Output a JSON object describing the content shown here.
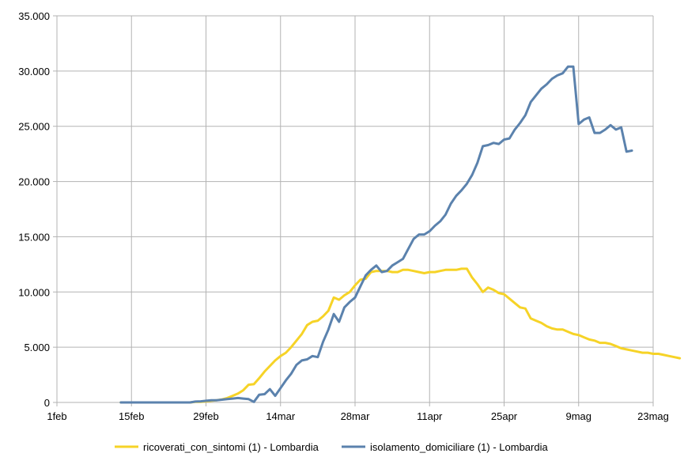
{
  "chart_data": {
    "type": "line",
    "title": "",
    "xlabel": "",
    "ylabel": "",
    "x_tick_labels": [
      "1feb",
      "15feb",
      "29feb",
      "14mar",
      "28mar",
      "11apr",
      "25apr",
      "9mag",
      "23mag"
    ],
    "y_tick_labels": [
      "0",
      "5.000",
      "10.000",
      "15.000",
      "20.000",
      "25.000",
      "30.000",
      "35.000"
    ],
    "y_ticks": [
      0,
      5000,
      10000,
      15000,
      20000,
      25000,
      30000,
      35000
    ],
    "ylim": [
      0,
      35000
    ],
    "x_axis": "days since 1feb",
    "xlim": [
      0,
      112
    ],
    "grid": true,
    "legend_position": "bottom",
    "series": [
      {
        "name": "ricoverati_con_sintomi (1) - Lombardia",
        "color": "#f6d327",
        "x": [
          12,
          13,
          14,
          15,
          16,
          17,
          18,
          19,
          20,
          21,
          22,
          23,
          24,
          25,
          26,
          27,
          28,
          29,
          30,
          31,
          32,
          33,
          34,
          35,
          36,
          37,
          38,
          39,
          40,
          41,
          42,
          43,
          44,
          45,
          46,
          47,
          48,
          49,
          50,
          51,
          52,
          53,
          54,
          55,
          56,
          57,
          58,
          59,
          60,
          61,
          62,
          63,
          64,
          65,
          66,
          67,
          68,
          69,
          70,
          71,
          72,
          73,
          74,
          75,
          76,
          77,
          78,
          79,
          80,
          81,
          82,
          83,
          84,
          85,
          86,
          87,
          88,
          89,
          90,
          91,
          92,
          93,
          94,
          95,
          96,
          97,
          98,
          99,
          100,
          101,
          102,
          103,
          104,
          105,
          106,
          107,
          108,
          109,
          110,
          111,
          112,
          113,
          114,
          115,
          116,
          117
        ],
        "values": [
          0,
          0,
          0,
          0,
          0,
          0,
          0,
          0,
          0,
          0,
          0,
          0,
          0,
          0,
          50,
          60,
          100,
          150,
          200,
          270,
          400,
          600,
          800,
          1100,
          1600,
          1650,
          2200,
          2800,
          3300,
          3800,
          4200,
          4500,
          5000,
          5600,
          6200,
          7000,
          7300,
          7400,
          7800,
          8300,
          9500,
          9300,
          9700,
          10000,
          10600,
          11100,
          11200,
          11800,
          11900,
          11900,
          11900,
          11800,
          11800,
          12000,
          12000,
          11900,
          11800,
          11700,
          11800,
          11800,
          11900,
          12000,
          12000,
          12000,
          12100,
          12100,
          11300,
          10700,
          10000,
          10400,
          10200,
          9900,
          9800,
          9400,
          9000,
          8600,
          8500,
          7600,
          7400,
          7200,
          6900,
          6700,
          6600,
          6600,
          6400,
          6200,
          6100,
          5900,
          5700,
          5600,
          5400,
          5400,
          5300,
          5100,
          4900,
          4800,
          4700,
          4600,
          4500,
          4500,
          4400,
          4400,
          4300,
          4200,
          4100,
          4000
        ],
        "n_points": 106
      },
      {
        "name": "isolamento_domiciliare (1) - Lombardia",
        "color": "#5b82ad",
        "x": [
          12,
          13,
          14,
          15,
          16,
          17,
          18,
          19,
          20,
          21,
          22,
          23,
          24,
          25,
          26,
          27,
          28,
          29,
          30,
          31,
          32,
          33,
          34,
          35,
          36,
          37,
          38,
          39,
          40,
          41,
          42,
          43,
          44,
          45,
          46,
          47,
          48,
          49,
          50,
          51,
          52,
          53,
          54,
          55,
          56,
          57,
          58,
          59,
          60,
          61,
          62,
          63,
          64,
          65,
          66,
          67,
          68,
          69,
          70,
          71,
          72,
          73,
          74,
          75,
          76,
          77,
          78,
          79,
          80,
          81,
          82,
          83,
          84,
          85,
          86,
          87,
          88,
          89,
          90,
          91,
          92,
          93,
          94,
          95,
          96,
          97,
          98,
          99,
          100,
          101,
          102,
          103,
          104,
          105,
          106,
          107,
          108
        ],
        "values": [
          0,
          0,
          0,
          0,
          0,
          0,
          0,
          0,
          0,
          0,
          0,
          0,
          0,
          0,
          80,
          100,
          150,
          200,
          200,
          250,
          300,
          350,
          400,
          350,
          300,
          50,
          700,
          750,
          1200,
          600,
          1300,
          2000,
          2600,
          3400,
          3800,
          3900,
          4200,
          4100,
          5500,
          6600,
          8000,
          7300,
          8600,
          9100,
          9500,
          10500,
          11500,
          12000,
          12400,
          11800,
          11900,
          12400,
          12700,
          13000,
          13900,
          14800,
          15200,
          15200,
          15500,
          16000,
          16400,
          17000,
          18000,
          18700,
          19200,
          19800,
          20600,
          21700,
          23200,
          23300,
          23500,
          23400,
          23800,
          23900,
          24700,
          25300,
          26000,
          27200,
          27800,
          28400,
          28800,
          29300,
          29600,
          29800,
          30400,
          30400,
          25200,
          25600,
          25800,
          24400,
          24400,
          24700,
          25100,
          24700,
          24900,
          22700,
          22800
        ],
        "n_points": 97
      }
    ]
  }
}
